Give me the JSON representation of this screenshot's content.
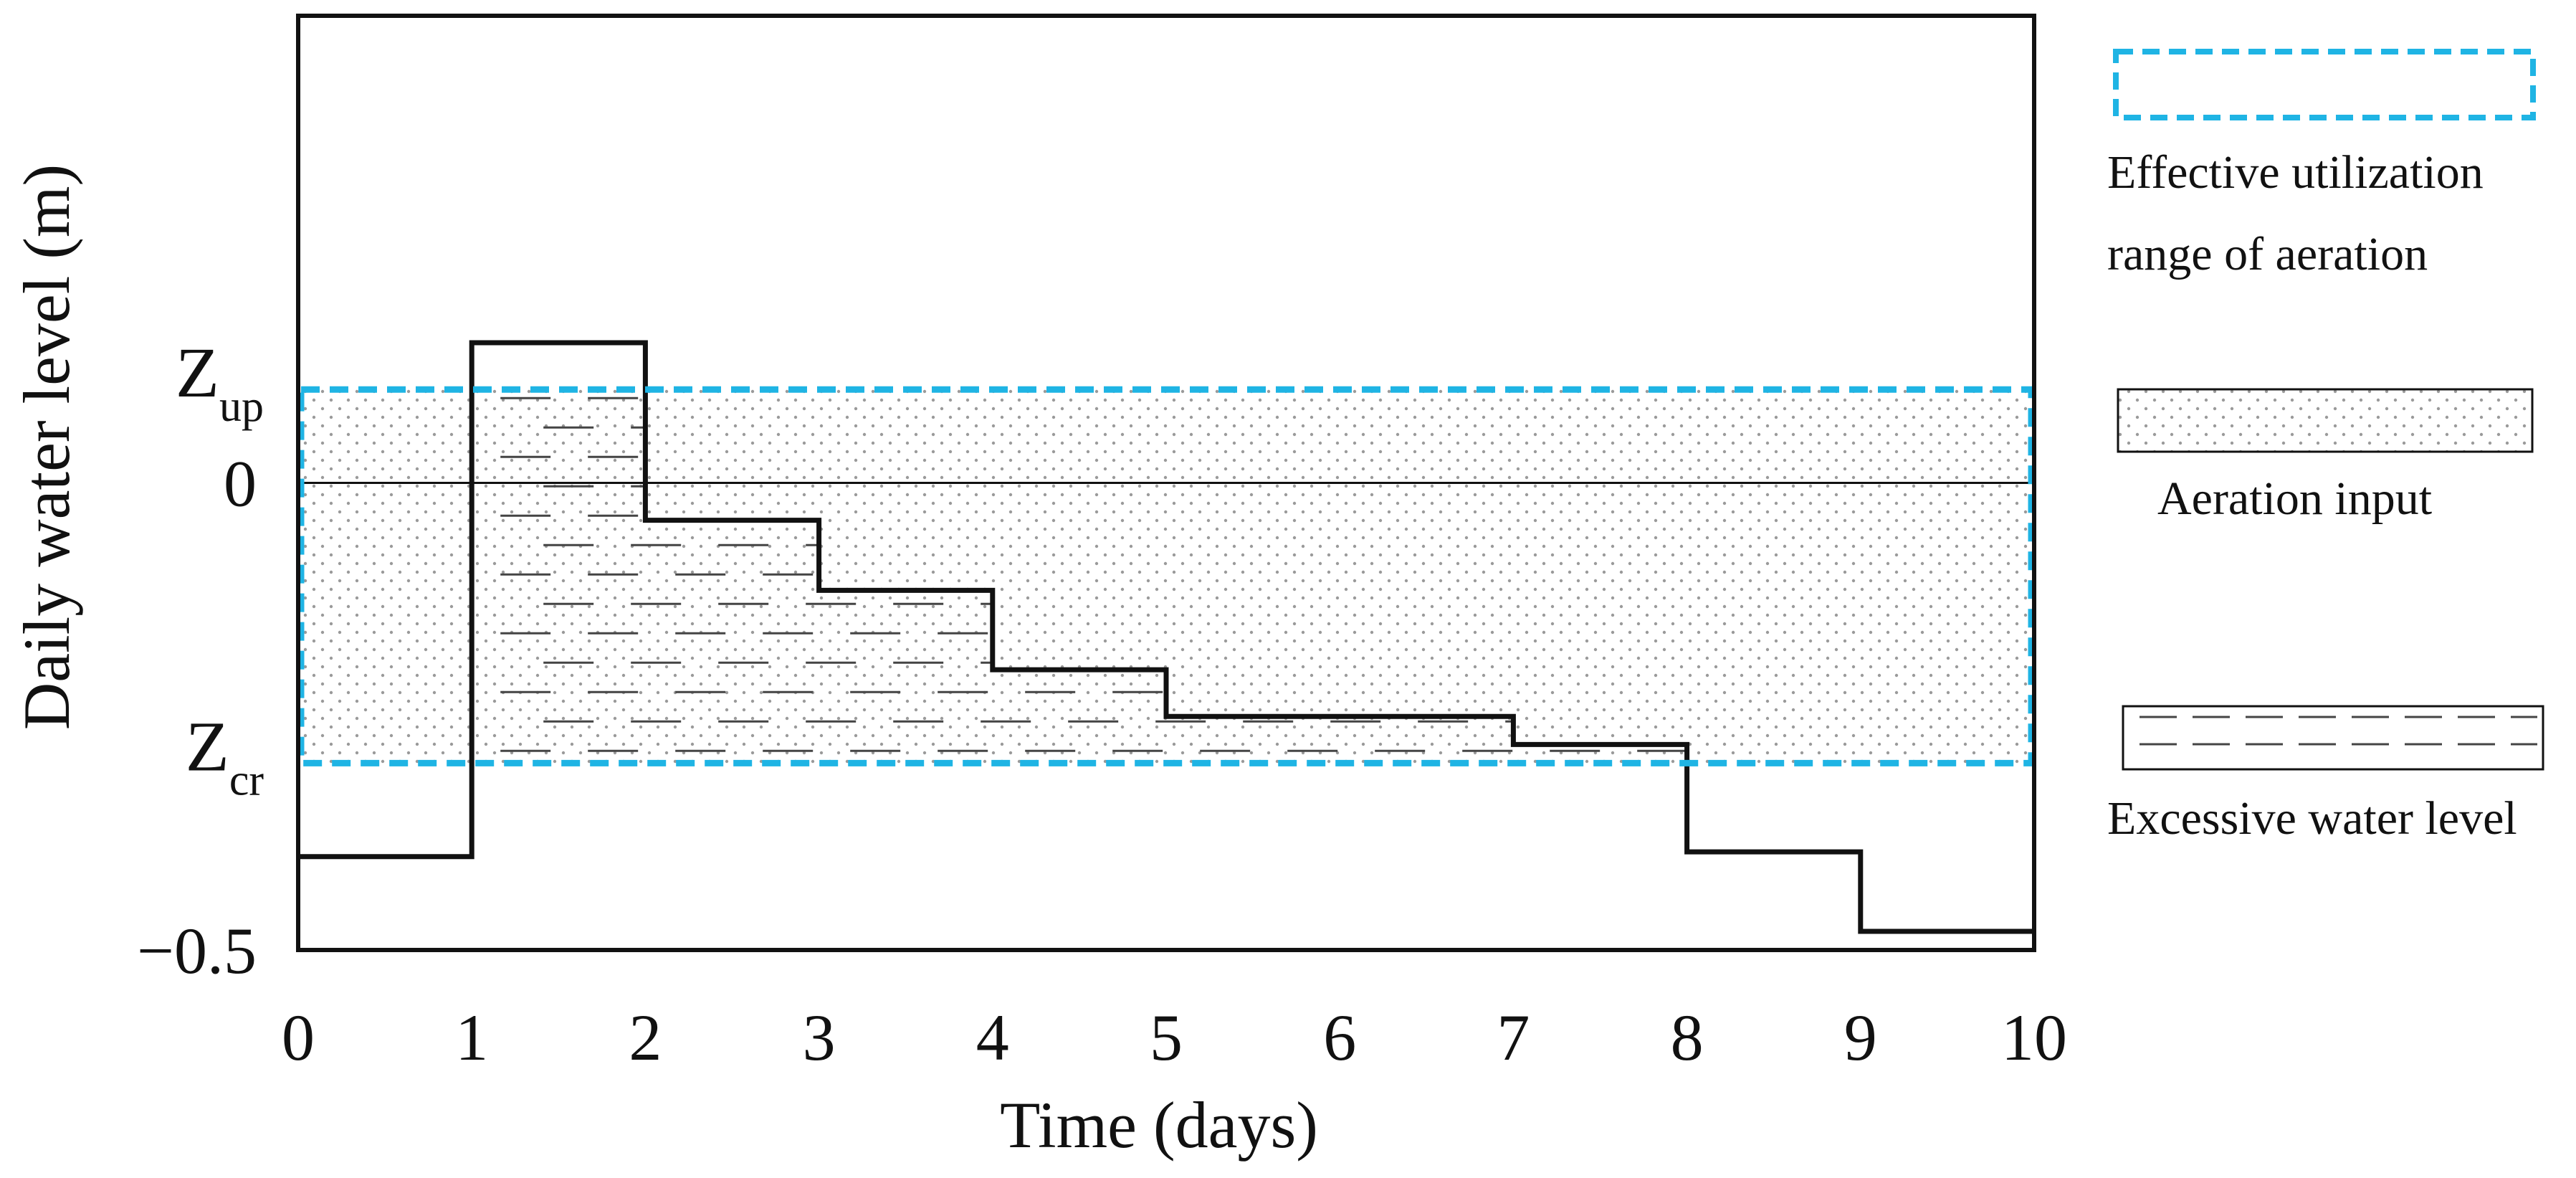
{
  "chart_data": {
    "type": "line",
    "step": true,
    "title": "",
    "xlabel": "Time (days)",
    "ylabel": "Daily water level (m)",
    "xlim": [
      0,
      10
    ],
    "ylim": [
      -0.5,
      0.5
    ],
    "xticks": [
      "0",
      "1",
      "2",
      "3",
      "4",
      "5",
      "6",
      "7",
      "8",
      "9",
      "10"
    ],
    "yticks": [
      {
        "value": 0,
        "label": "0"
      },
      {
        "value": -0.5,
        "label": "−0.5"
      }
    ],
    "thresholds": {
      "z_up": {
        "main": "Z",
        "sub": "up",
        "value": 0.1
      },
      "z_cr": {
        "main": "Z",
        "sub": "cr",
        "value": -0.3
      }
    },
    "zero_line": 0,
    "series": [
      {
        "name": "Daily water level",
        "x": [
          0,
          1,
          2,
          3,
          4,
          5,
          6,
          7,
          8,
          9
        ],
        "values": [
          -0.4,
          0.15,
          -0.04,
          -0.115,
          -0.2,
          -0.25,
          -0.25,
          -0.28,
          -0.395,
          -0.48
        ]
      }
    ],
    "excess_region": {
      "x_start": 1,
      "x_end": 8
    },
    "legend": [
      {
        "key": "effective",
        "label": "Effective  utilization\nrange of aeration"
      },
      {
        "key": "aeration",
        "label": "Aeration input"
      },
      {
        "key": "excess",
        "label": "Excessive water level"
      }
    ],
    "colors": {
      "axis": "#111111",
      "series": "#111111",
      "effective_range": "#1fb4e4",
      "dots": "#9a9a9a",
      "dash": "#444444"
    }
  }
}
